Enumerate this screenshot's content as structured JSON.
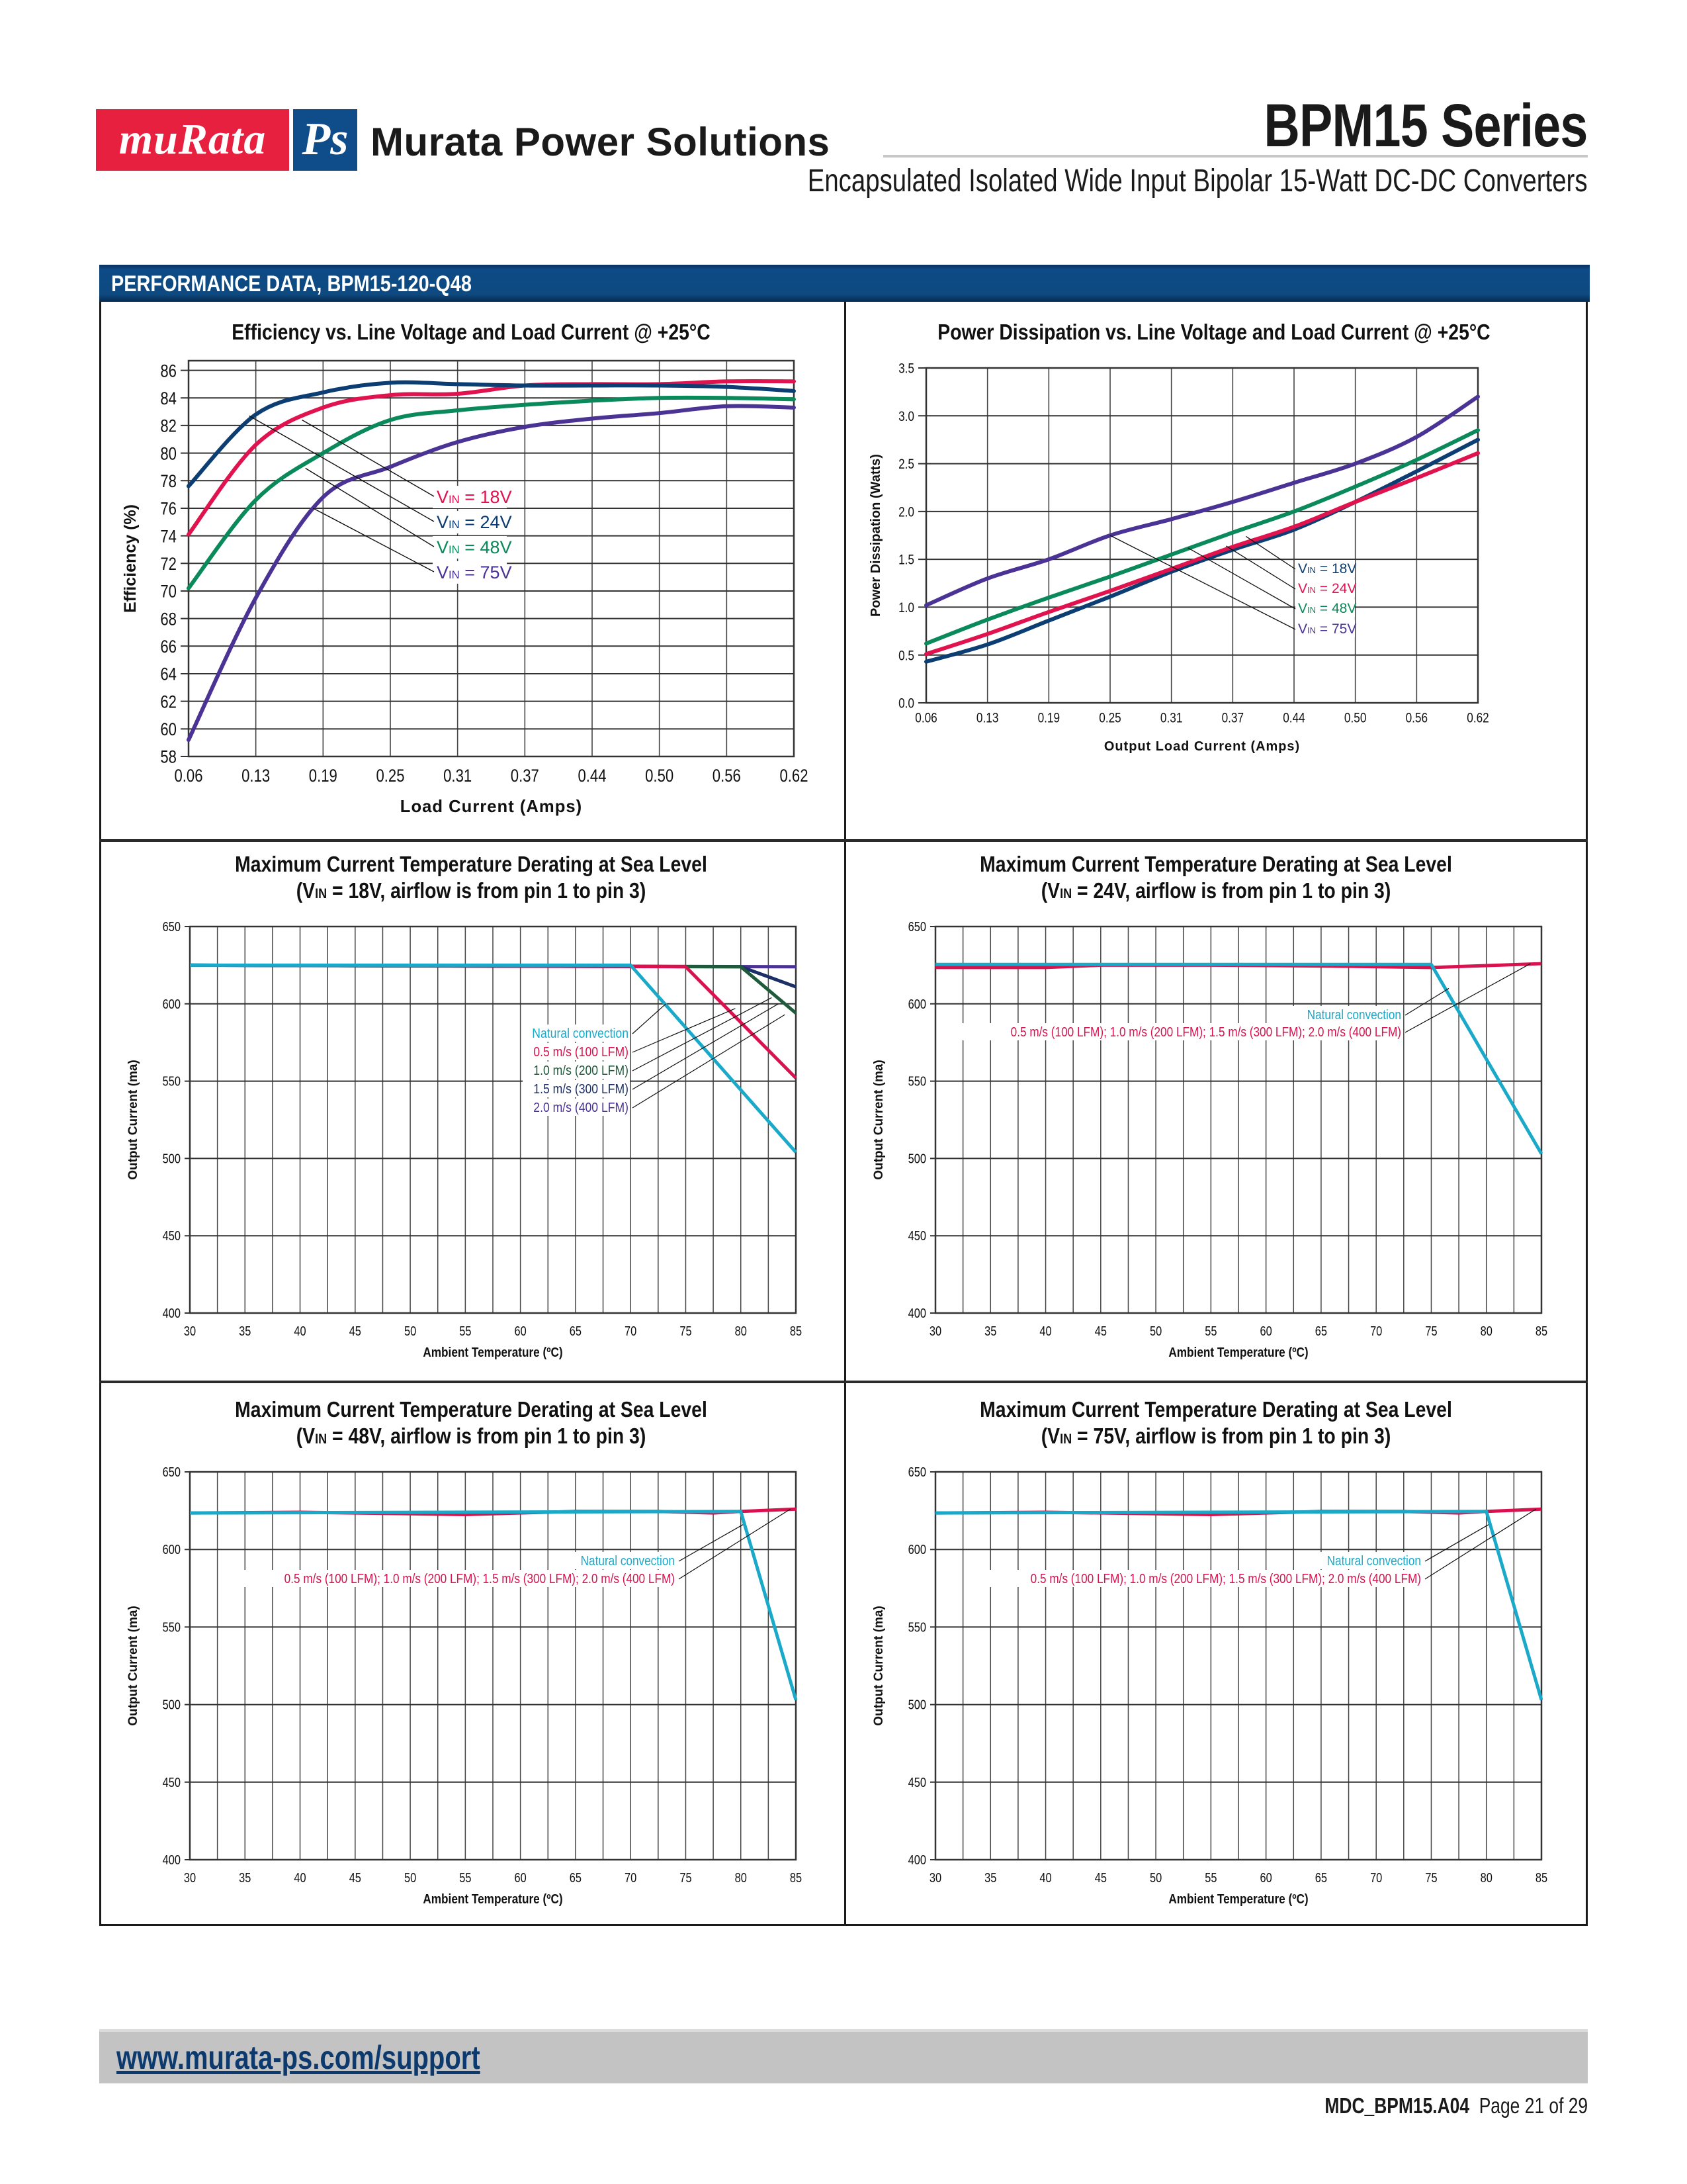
{
  "header": {
    "logo_left": "muRata",
    "logo_right": "Ps",
    "brand_name": "Murata Power Solutions",
    "series_title": "BPM15 Series",
    "subtitle": "Encapsulated Isolated Wide Input Bipolar 15-Watt DC-DC Converters"
  },
  "section": {
    "title": "PERFORMANCE DATA, BPM15-120-Q48"
  },
  "colors": {
    "brand_red": "#e8203f",
    "brand_blue": "#0f4c8a",
    "vin18_eff": "#e0134f",
    "vin24_eff": "#0c3e73",
    "vin48": "#0a8a5a",
    "vin75": "#4a3394",
    "natural": "#1aa9c9",
    "airflow": "#d8124e",
    "green_dark": "#1f5a3a",
    "navy": "#1c2f66",
    "purple": "#4a3394"
  },
  "chart_data": [
    {
      "id": "efficiency",
      "type": "line",
      "title": "Efficiency vs. Line Voltage and Load Current @ +25°C",
      "xlabel": "Load Current (Amps)",
      "ylabel": "Efficiency (%)",
      "x": [
        0.06,
        0.13,
        0.19,
        0.25,
        0.31,
        0.37,
        0.44,
        0.5,
        0.56,
        0.62
      ],
      "x_ticks": [
        "0.06",
        "0.13",
        "0.19",
        "0.25",
        "0.31",
        "0.37",
        "0.44",
        "0.50",
        "0.56",
        "0.62"
      ],
      "y_ticks": [
        "58",
        "60",
        "62",
        "64",
        "66",
        "68",
        "70",
        "72",
        "74",
        "76",
        "78",
        "80",
        "82",
        "84",
        "86"
      ],
      "ylim": [
        58,
        86.7
      ],
      "grid": true,
      "legend_placement": "center",
      "series": [
        {
          "name": "VIN = 18V",
          "label_prefix": "V",
          "label_sub": "IN",
          "label_suffix": " = 18V",
          "color": "#e0134f",
          "values": [
            74.1,
            80.6,
            83.3,
            84.2,
            84.3,
            84.9,
            85.0,
            85.0,
            85.2,
            85.2
          ]
        },
        {
          "name": "VIN = 24V",
          "label_prefix": "V",
          "label_sub": "IN",
          "label_suffix": " = 24V",
          "color": "#0c3e73",
          "values": [
            77.6,
            82.8,
            84.4,
            85.1,
            85.0,
            84.9,
            84.9,
            84.9,
            84.8,
            84.5
          ]
        },
        {
          "name": "VIN = 48V",
          "label_prefix": "V",
          "label_sub": "IN",
          "label_suffix": " = 48V",
          "color": "#0a8a5a",
          "values": [
            70.2,
            76.6,
            80.0,
            82.4,
            83.1,
            83.5,
            83.8,
            84.0,
            84.0,
            83.9
          ]
        },
        {
          "name": "VIN = 75V",
          "label_prefix": "V",
          "label_sub": "IN",
          "label_suffix": " = 75V",
          "color": "#4a3394",
          "values": [
            59.2,
            69.5,
            76.8,
            79.0,
            80.8,
            81.9,
            82.5,
            82.9,
            83.4,
            83.3
          ]
        }
      ]
    },
    {
      "id": "power-dissipation",
      "type": "line",
      "title": "Power Dissipation vs. Line Voltage and Load Current @ +25°C",
      "xlabel": "Output Load Current (Amps)",
      "ylabel": "Power Dissipation (Watts)",
      "x": [
        0.06,
        0.13,
        0.19,
        0.25,
        0.31,
        0.37,
        0.44,
        0.5,
        0.56,
        0.62
      ],
      "x_ticks": [
        "0.06",
        "0.13",
        "0.19",
        "0.25",
        "0.31",
        "0.37",
        "0.44",
        "0.50",
        "0.56",
        "0.62"
      ],
      "y_ticks": [
        "0.0",
        "0.5",
        "1.0",
        "1.5",
        "2.0",
        "2.5",
        "3.0",
        "3.5"
      ],
      "ylim": [
        0,
        3.5
      ],
      "grid": true,
      "legend_placement": "right",
      "series": [
        {
          "name": "VIN = 18V",
          "label_prefix": "V",
          "label_sub": "IN",
          "label_suffix": " = 18V",
          "color": "#0c3e73",
          "values": [
            0.43,
            0.61,
            0.86,
            1.11,
            1.37,
            1.6,
            1.81,
            2.1,
            2.42,
            2.75
          ]
        },
        {
          "name": "VIN = 24V",
          "label_prefix": "V",
          "label_sub": "IN",
          "label_suffix": " = 24V",
          "color": "#e0134f",
          "values": [
            0.51,
            0.72,
            0.95,
            1.17,
            1.4,
            1.63,
            1.84,
            2.1,
            2.35,
            2.61
          ]
        },
        {
          "name": "VIN = 48V",
          "label_prefix": "V",
          "label_sub": "IN",
          "label_suffix": " = 48V",
          "color": "#0a8a5a",
          "values": [
            0.62,
            0.87,
            1.1,
            1.32,
            1.55,
            1.78,
            2.0,
            2.26,
            2.54,
            2.85
          ]
        },
        {
          "name": "VIN = 75V",
          "label_prefix": "V",
          "label_sub": "IN",
          "label_suffix": " = 75V",
          "color": "#4a3394",
          "values": [
            1.02,
            1.3,
            1.5,
            1.75,
            1.92,
            2.1,
            2.3,
            2.5,
            2.78,
            3.2
          ]
        }
      ]
    },
    {
      "id": "derating-18v",
      "type": "line",
      "title": "Maximum Current Temperature Derating at Sea Level",
      "subtitle_prefix": "(V",
      "subtitle_sub": "IN",
      "subtitle_suffix": " = 18V, airflow is from pin 1 to pin 3)",
      "xlabel": "Ambient Temperature (ºC)",
      "ylabel": "Output Current (ma)",
      "x_ticks": [
        "30",
        "35",
        "40",
        "45",
        "50",
        "55",
        "60",
        "65",
        "70",
        "75",
        "80",
        "85"
      ],
      "y_ticks": [
        "400",
        "450",
        "500",
        "550",
        "600",
        "650"
      ],
      "xlim": [
        30,
        85
      ],
      "ylim": [
        400,
        650
      ],
      "grid": true,
      "legend_placement": "center-right",
      "series": [
        {
          "name": "Natural convection",
          "color": "#1aa9c9",
          "x": [
            30,
            70,
            85
          ],
          "values": [
            625,
            625,
            504
          ]
        },
        {
          "name": "0.5 m/s (100 LFM)",
          "color": "#d8124e",
          "x": [
            30,
            75,
            85
          ],
          "values": [
            625,
            624,
            552
          ]
        },
        {
          "name": "1.0 m/s (200 LFM)",
          "color": "#1f5a3a",
          "x": [
            30,
            80,
            85
          ],
          "values": [
            625,
            624,
            594
          ]
        },
        {
          "name": "1.5 m/s (300 LFM)",
          "color": "#1c2f66",
          "x": [
            30,
            80,
            85
          ],
          "values": [
            625,
            624,
            611
          ]
        },
        {
          "name": "2.0 m/s (400 LFM)",
          "color": "#4a3394",
          "x": [
            30,
            85
          ],
          "values": [
            625,
            624
          ]
        }
      ]
    },
    {
      "id": "derating-24v",
      "type": "line",
      "title": "Maximum Current Temperature Derating at Sea Level",
      "subtitle_prefix": "(V",
      "subtitle_sub": "IN",
      "subtitle_suffix": " = 24V, airflow is from pin 1 to pin 3)",
      "xlabel": "Ambient Temperature (ºC)",
      "ylabel": "Output Current (ma)",
      "x_ticks": [
        "30",
        "35",
        "40",
        "45",
        "50",
        "55",
        "60",
        "65",
        "70",
        "75",
        "80",
        "85"
      ],
      "y_ticks": [
        "400",
        "450",
        "500",
        "550",
        "600",
        "650"
      ],
      "xlim": [
        30,
        85
      ],
      "ylim": [
        400,
        650
      ],
      "grid": true,
      "legend_placement": "center-right",
      "series": [
        {
          "name": "Natural convection",
          "color": "#1aa9c9",
          "x": [
            30,
            75,
            85
          ],
          "values": [
            625.5,
            625.5,
            503
          ]
        },
        {
          "name": "0.5 m/s (100 LFM); 1.0 m/s (200 LFM); 1.5 m/s (300 LFM); 2.0 m/s (400 LFM)",
          "color": "#d8124e",
          "x": [
            30,
            40,
            45,
            55,
            65,
            75,
            85
          ],
          "values": [
            623.5,
            623.5,
            625,
            625,
            624.5,
            623.5,
            626
          ]
        }
      ]
    },
    {
      "id": "derating-48v",
      "type": "line",
      "title": "Maximum Current Temperature Derating at Sea Level",
      "subtitle_prefix": "(V",
      "subtitle_sub": "IN",
      "subtitle_suffix": " = 48V, airflow is from pin 1 to pin 3)",
      "xlabel": "Ambient Temperature (ºC)",
      "ylabel": "Output Current (ma)",
      "x_ticks": [
        "30",
        "35",
        "40",
        "45",
        "50",
        "55",
        "60",
        "65",
        "70",
        "75",
        "80",
        "85"
      ],
      "y_ticks": [
        "400",
        "450",
        "500",
        "550",
        "600",
        "650"
      ],
      "xlim": [
        30,
        85
      ],
      "ylim": [
        400,
        650
      ],
      "grid": true,
      "legend_placement": "center-right",
      "series": [
        {
          "name": "Natural convection",
          "color": "#1aa9c9",
          "x": [
            30,
            80,
            85
          ],
          "values": [
            623.5,
            624.5,
            503
          ]
        },
        {
          "name": "0.5 m/s (100 LFM); 1.0 m/s (200 LFM); 1.5 m/s (300 LFM); 2.0 m/s (400 LFM)",
          "color": "#d8124e",
          "x": [
            30,
            40,
            50,
            55,
            65,
            72.5,
            77.5,
            80,
            85
          ],
          "values": [
            623.5,
            624,
            623,
            622.5,
            624.5,
            624.5,
            623.5,
            624.5,
            626
          ]
        }
      ]
    },
    {
      "id": "derating-75v",
      "type": "line",
      "title": "Maximum Current Temperature Derating at Sea Level",
      "subtitle_prefix": "(V",
      "subtitle_sub": "IN",
      "subtitle_suffix": " = 75V, airflow is from pin 1 to pin 3)",
      "xlabel": "Ambient Temperature (ºC)",
      "ylabel": "Output Current (ma)",
      "x_ticks": [
        "30",
        "35",
        "40",
        "45",
        "50",
        "55",
        "60",
        "65",
        "70",
        "75",
        "80",
        "85"
      ],
      "y_ticks": [
        "400",
        "450",
        "500",
        "550",
        "600",
        "650"
      ],
      "xlim": [
        30,
        85
      ],
      "ylim": [
        400,
        650
      ],
      "grid": true,
      "legend_placement": "center-right",
      "series": [
        {
          "name": "Natural convection",
          "color": "#1aa9c9",
          "x": [
            30,
            80,
            85
          ],
          "values": [
            623.5,
            624.5,
            503
          ]
        },
        {
          "name": "0.5 m/s (100 LFM); 1.0 m/s (200 LFM); 1.5 m/s (300 LFM); 2.0 m/s (400 LFM)",
          "color": "#d8124e",
          "x": [
            30,
            40,
            50,
            55,
            65,
            72.5,
            77.5,
            80,
            85
          ],
          "values": [
            623.5,
            624,
            623,
            622.5,
            624.5,
            624.5,
            623.5,
            624.5,
            626
          ]
        }
      ]
    }
  ],
  "footer": {
    "link": "www.murata-ps.com/support",
    "doc_id": "MDC_BPM15.A04",
    "page": "Page 21 of 29"
  }
}
